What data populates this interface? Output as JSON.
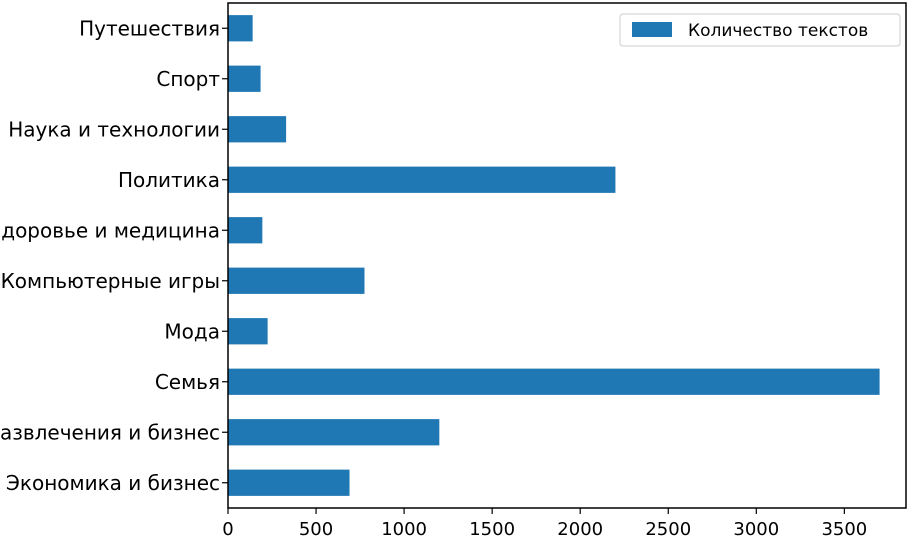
{
  "chart_data": {
    "type": "bar",
    "orientation": "horizontal",
    "categories": [
      "Путешествия",
      "Спорт",
      "Наука и технологии",
      "Политика",
      "Здоровье и медицина",
      "Компьютерные игры",
      "Мода",
      "Семья",
      "Развлечения и бизнес",
      "Экономика и бизнес"
    ],
    "series": [
      {
        "name": "Количество текстов",
        "color": "#1f77b4",
        "values": [
          140,
          185,
          330,
          2200,
          195,
          775,
          225,
          3700,
          1200,
          690
        ]
      }
    ],
    "xlim": [
      0,
      3850
    ],
    "x_ticks": [
      0,
      500,
      1000,
      1500,
      2000,
      2500,
      3000,
      3500
    ],
    "grid": false,
    "legend_position": "top-right"
  }
}
